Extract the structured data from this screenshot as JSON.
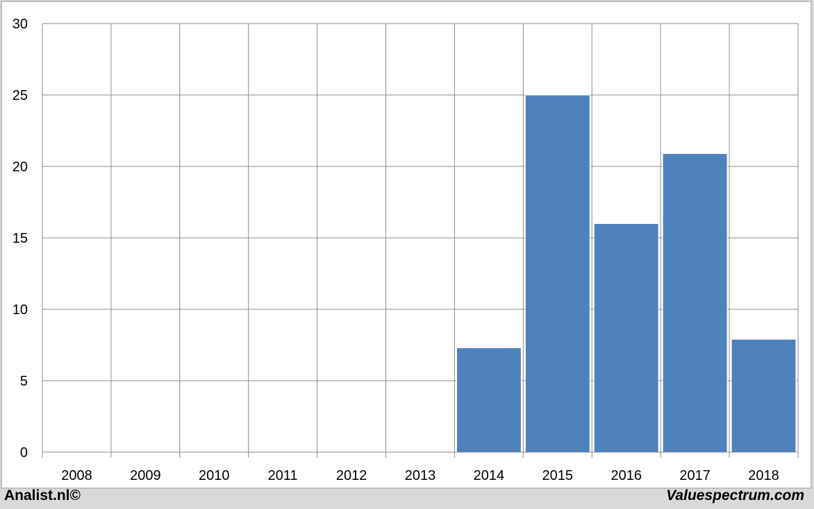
{
  "chart_data": {
    "type": "bar",
    "categories": [
      "2008",
      "2009",
      "2010",
      "2011",
      "2012",
      "2013",
      "2014",
      "2015",
      "2016",
      "2017",
      "2018"
    ],
    "values": [
      null,
      null,
      null,
      null,
      null,
      null,
      7.3,
      25.0,
      16.0,
      20.9,
      7.9
    ],
    "title": "",
    "xlabel": "",
    "ylabel": "",
    "ylim": [
      0,
      30
    ],
    "yticks": [
      0,
      5,
      10,
      15,
      20,
      25,
      30
    ],
    "grid": true,
    "bar_color": "#4f81bd"
  },
  "footer": {
    "left": "Analist.nl©",
    "right": "Valuespectrum.com"
  }
}
